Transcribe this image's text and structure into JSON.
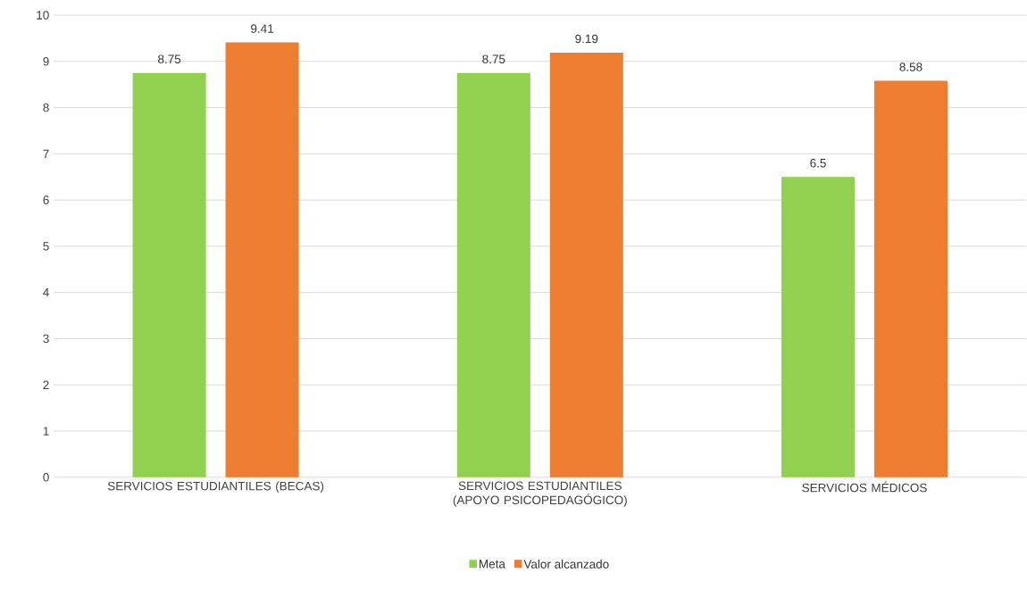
{
  "chart_data": {
    "type": "bar",
    "categories": [
      "SERVICIOS ESTUDIANTILES (BECAS)",
      "SERVICIOS ESTUDIANTILES (APOYO PSICOPEDAGÓGICO)",
      "SERVICIOS MÉDICOS"
    ],
    "series": [
      {
        "name": "Meta",
        "color": "#92d050",
        "values": [
          8.75,
          8.75,
          6.5
        ]
      },
      {
        "name": "Valor alcanzado",
        "color": "#ed7d31",
        "values": [
          9.41,
          9.19,
          8.58
        ]
      }
    ],
    "ylim": [
      0,
      10
    ],
    "yticks": [
      0,
      1,
      2,
      3,
      4,
      5,
      6,
      7,
      8,
      9,
      10
    ],
    "grid": "y",
    "legend": "bottom",
    "data_labels": true
  }
}
